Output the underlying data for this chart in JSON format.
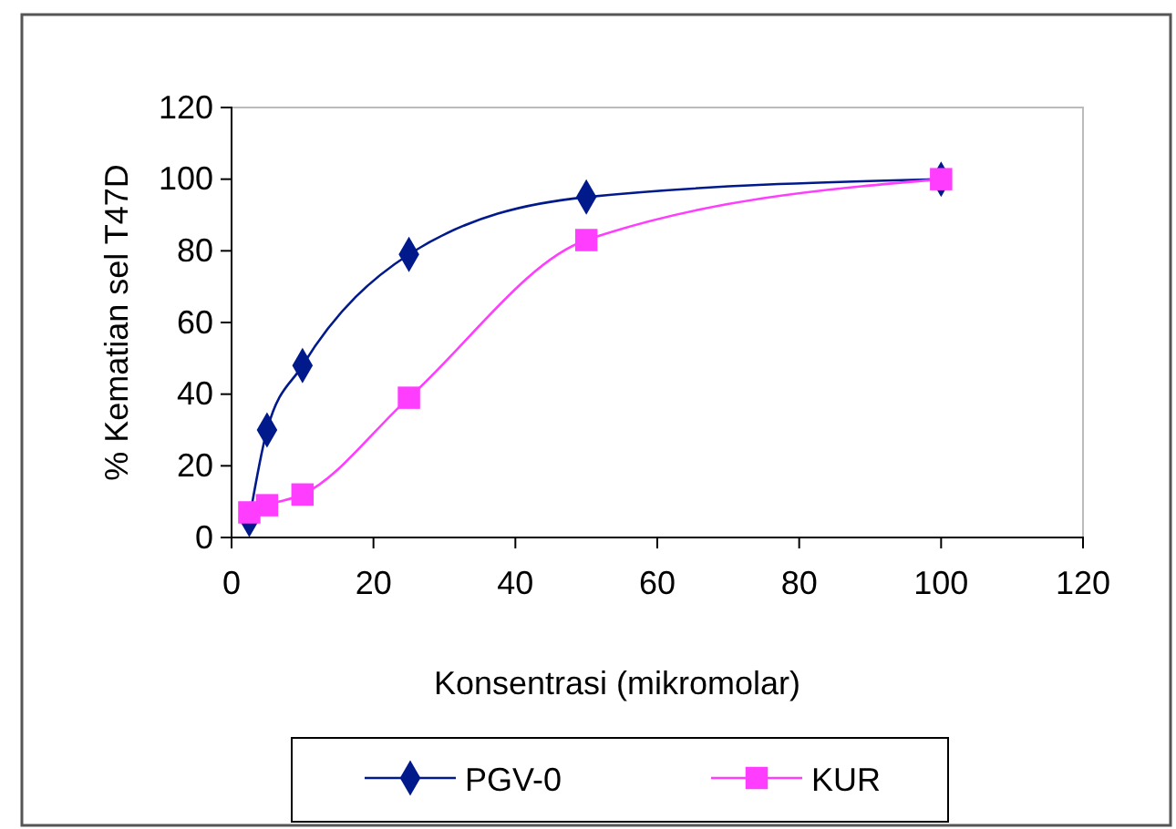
{
  "chart_data": {
    "type": "line",
    "xlabel": "Konsentrasi (mikromolar)",
    "ylabel": "% Kematian sel T47D",
    "xlim": [
      0,
      120
    ],
    "xticks": [
      0,
      20,
      40,
      60,
      80,
      100,
      120
    ],
    "ylim": [
      0,
      120
    ],
    "yticks": [
      0,
      20,
      40,
      60,
      80,
      100,
      120
    ],
    "x": [
      2.5,
      5,
      10,
      25,
      50,
      100
    ],
    "legend": "bottom",
    "grid": false,
    "series": [
      {
        "name": "PGV-0",
        "color": "#001a8c",
        "marker": "diamond",
        "values": [
          5,
          30,
          48,
          79,
          95,
          100
        ]
      },
      {
        "name": "KUR",
        "color": "#ff3dff",
        "marker": "square",
        "values": [
          7,
          9,
          12,
          39,
          83,
          100
        ]
      }
    ]
  }
}
